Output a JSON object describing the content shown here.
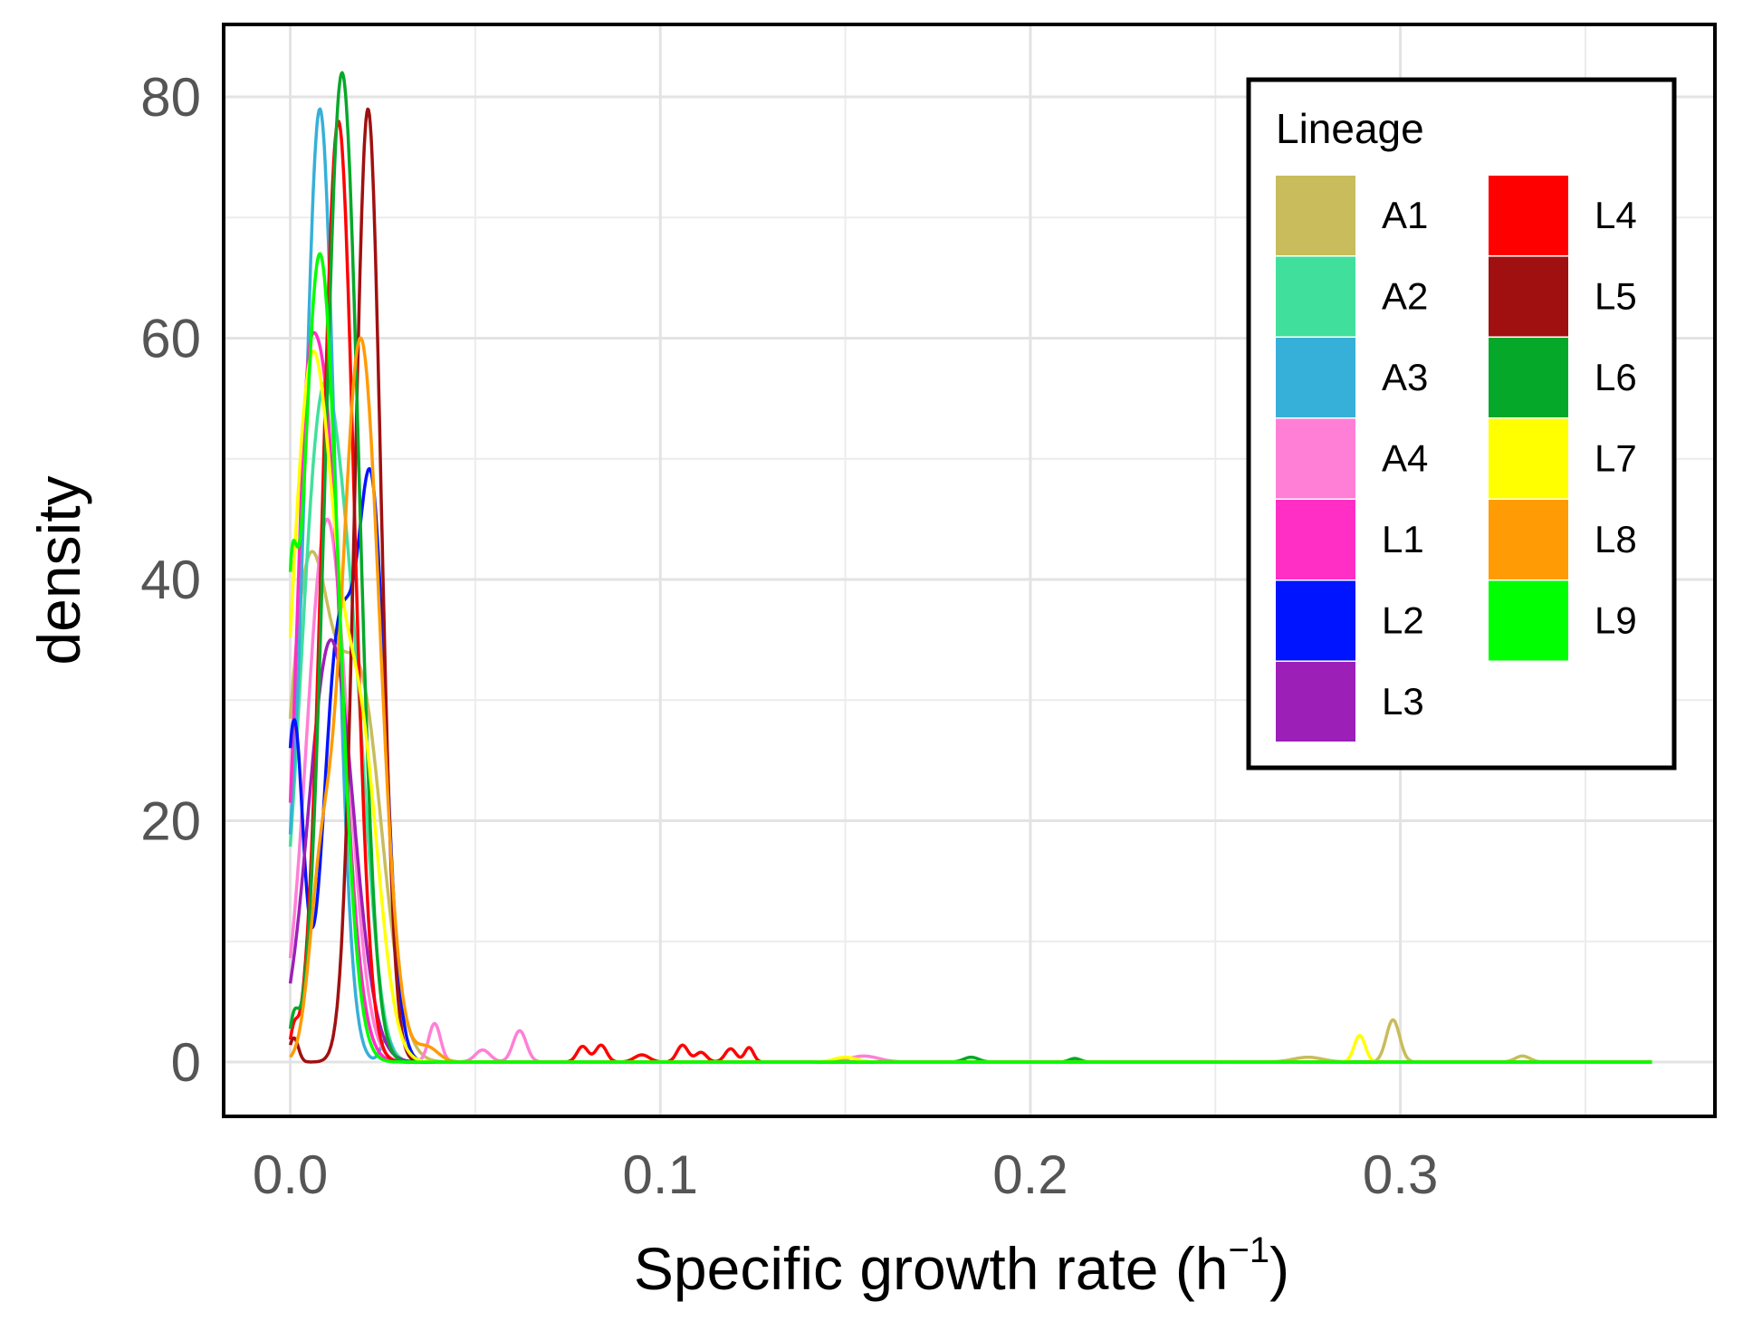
{
  "chart_data": {
    "type": "density",
    "title": "",
    "xlabel": "Specific growth rate (h",
    "xlabel_sup": "−1",
    "xlabel_close": ")",
    "ylabel": "density",
    "xlim": [
      -0.018,
      0.385
    ],
    "ylim": [
      -4.5,
      86
    ],
    "x_ticks": [
      0.0,
      0.1,
      0.2,
      0.3
    ],
    "x_tick_labels": [
      "0.0",
      "0.1",
      "0.2",
      "0.3"
    ],
    "x_minor_ticks": [
      0.05,
      0.15,
      0.25,
      0.35
    ],
    "y_ticks": [
      0,
      20,
      40,
      60,
      80
    ],
    "y_tick_labels": [
      "0",
      "20",
      "40",
      "60",
      "80"
    ],
    "y_minor_ticks": [
      10,
      30,
      50,
      70
    ],
    "grid": true,
    "legend": {
      "title": "Lineage",
      "position": "top-right",
      "columns": 2
    },
    "series": [
      {
        "name": "A1",
        "color": "#C8BC5C",
        "peaks": [
          [
            0.005,
            40,
            0.006
          ],
          [
            0.019,
            30,
            0.006
          ],
          [
            0.298,
            3.5,
            0.0018
          ],
          [
            0.275,
            0.4,
            0.004
          ],
          [
            0.333,
            0.5,
            0.002
          ]
        ]
      },
      {
        "name": "A2",
        "color": "#40E09C",
        "peaks": [
          [
            0.009,
            55,
            0.006
          ],
          [
            0.018,
            15,
            0.004
          ]
        ]
      },
      {
        "name": "A3",
        "color": "#36B0D8",
        "peaks": [
          [
            0.008,
            79,
            0.0042
          ],
          [
            0.026,
            2,
            0.0015
          ],
          [
            0.0,
            6,
            0.0015
          ]
        ]
      },
      {
        "name": "A4",
        "color": "#FF7FD6",
        "peaks": [
          [
            0.01,
            45,
            0.0055
          ],
          [
            0.039,
            3.2,
            0.0016
          ],
          [
            0.062,
            2.6,
            0.0018
          ],
          [
            0.052,
            1,
            0.002
          ],
          [
            0.155,
            0.5,
            0.004
          ]
        ]
      },
      {
        "name": "L1",
        "color": "#FF2EC5",
        "peaks": [
          [
            0.008,
            58,
            0.0055
          ],
          [
            0.004,
            10,
            0.002
          ]
        ]
      },
      {
        "name": "L2",
        "color": "#0014FF",
        "peaks": [
          [
            0.001,
            28,
            0.0025
          ],
          [
            0.013,
            34,
            0.004
          ],
          [
            0.022,
            46,
            0.0038
          ]
        ]
      },
      {
        "name": "L3",
        "color": "#9C1FB8",
        "peaks": [
          [
            0.011,
            35,
            0.006
          ]
        ]
      },
      {
        "name": "L4",
        "color": "#FF0000",
        "peaks": [
          [
            0.013,
            78,
            0.0042
          ],
          [
            0.001,
            2,
            0.001
          ],
          [
            0.079,
            1.3,
            0.0015
          ],
          [
            0.084,
            1.4,
            0.0015
          ],
          [
            0.095,
            0.6,
            0.002
          ],
          [
            0.106,
            1.4,
            0.0015
          ],
          [
            0.111,
            0.8,
            0.0015
          ],
          [
            0.119,
            1.1,
            0.0015
          ],
          [
            0.124,
            1.2,
            0.0012
          ]
        ]
      },
      {
        "name": "L5",
        "color": "#A01010",
        "peaks": [
          [
            0.021,
            79,
            0.0035
          ],
          [
            0.001,
            2,
            0.0012
          ]
        ]
      },
      {
        "name": "L6",
        "color": "#06A82A",
        "peaks": [
          [
            0.014,
            82,
            0.0045
          ],
          [
            0.001,
            3,
            0.0012
          ],
          [
            0.184,
            0.4,
            0.002
          ],
          [
            0.212,
            0.3,
            0.0015
          ]
        ]
      },
      {
        "name": "L7",
        "color": "#FFFF00",
        "peaks": [
          [
            0.006,
            58,
            0.006
          ],
          [
            0.019,
            25,
            0.005
          ],
          [
            0.289,
            2.2,
            0.0015
          ],
          [
            0.15,
            0.4,
            0.003
          ]
        ]
      },
      {
        "name": "L8",
        "color": "#FF9B05",
        "peaks": [
          [
            0.019,
            60,
            0.0052
          ],
          [
            0.008,
            12,
            0.003
          ],
          [
            0.037,
            1.2,
            0.003
          ]
        ]
      },
      {
        "name": "L9",
        "color": "#00FF00",
        "peaks": [
          [
            0.008,
            67,
            0.005
          ],
          [
            0.0,
            22,
            0.0016
          ]
        ]
      }
    ]
  }
}
